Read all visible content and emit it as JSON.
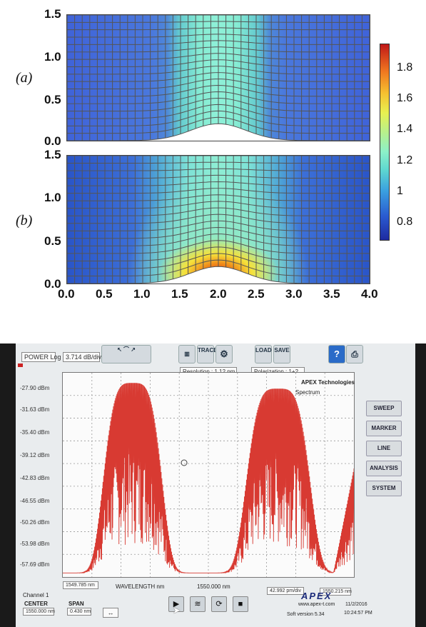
{
  "figure": {
    "panel_a_label": "(a)",
    "panel_b_label": "(b)",
    "y_ticks": [
      "1.5",
      "1.0",
      "0.5",
      "0.0"
    ],
    "x_ticks": [
      "0.0",
      "0.5",
      "1.0",
      "1.5",
      "2.0",
      "2.5",
      "3.0",
      "3.5",
      "4.0"
    ],
    "colorbar_ticks": [
      "1.8",
      "1.6",
      "1.4",
      "1.2",
      "1",
      "0.8"
    ],
    "colorbar_range": [
      0.68,
      1.95
    ]
  },
  "analyzer": {
    "mode_label": "POWER Log",
    "scale_value": "3.714 dB/div",
    "trace_button": "TRACE",
    "load_button": "LOAD",
    "save_button": "SAVE",
    "resolution": "Resolution : 1.12 pm",
    "polarization": "Polarization : 1+2",
    "brand": "APEX Technologies",
    "trace_name": "Spectrum",
    "y_labels": [
      "-27.90 dBm",
      "-31.63 dBm",
      "-35.40 dBm",
      "-39.12 dBm",
      "-42.83 dBm",
      "-46.55 dBm",
      "-50.26 dBm",
      "-53.98 dBm",
      "-57.69 dBm"
    ],
    "side_buttons": [
      "SWEEP",
      "MARKER",
      "LINE",
      "ANALYSIS",
      "SYSTEM"
    ],
    "x_start": "1549.785 nm",
    "x_axis_label": "WAVELENGTH nm",
    "x_center": "1550.000 nm",
    "x_per_div": "42.992 pm/div",
    "x_end": "1550.215 nm",
    "channel": "Channel 1",
    "center_label": "CENTER",
    "center_value": "1550.000 nm",
    "span_label": "SPAN",
    "span_value": "0.430 nm",
    "logo": "APEX",
    "website": "www.apex-t.com",
    "soft_version": "Soft version 5.34",
    "date": "11/2/2016",
    "time": "10:24:57 PM",
    "trace_color": "#d83a32"
  }
}
